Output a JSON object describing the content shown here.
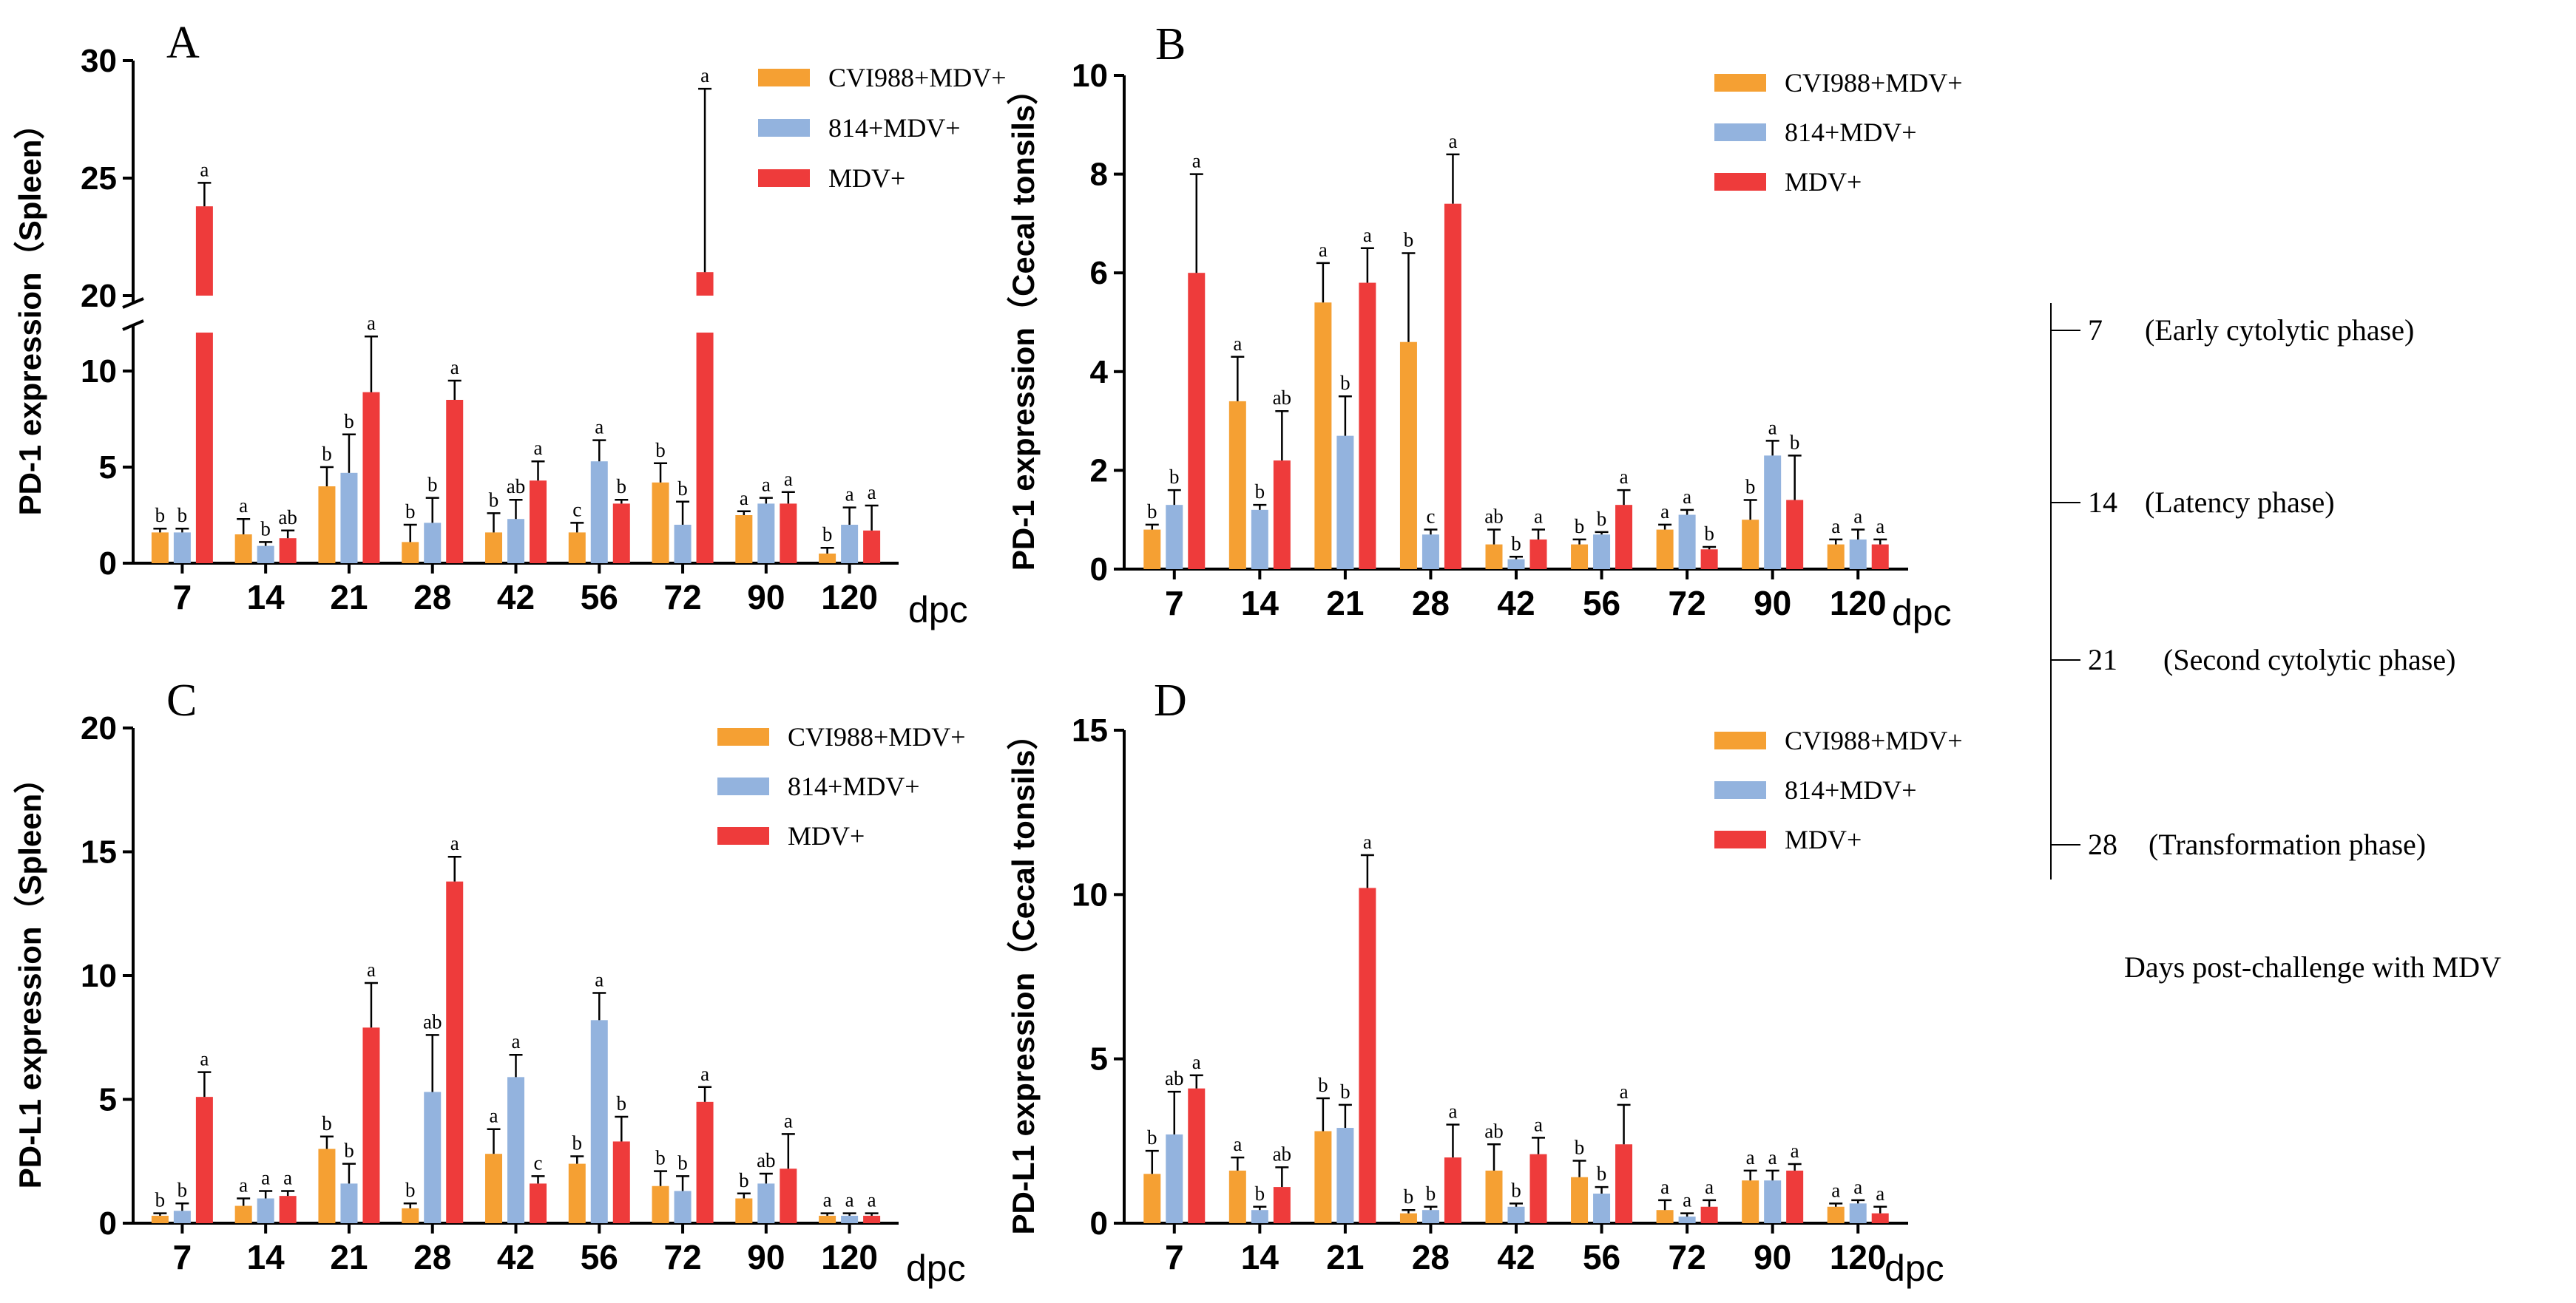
{
  "colors": {
    "CVI988+MDV+": "#F5A033",
    "814+MDV+": "#93B3DE",
    "MDV+": "#EE3B3B"
  },
  "x_axis_unit": "dpc",
  "chart_data": [
    {
      "type": "bar",
      "panel": "A",
      "ylabel": "PD-1 expression（Spleen）",
      "xlabel": "dpc",
      "categories": [
        "7",
        "14",
        "21",
        "28",
        "42",
        "56",
        "72",
        "90",
        "120"
      ],
      "ylim": [
        0,
        30
      ],
      "y_axis_break": [
        12,
        20
      ],
      "yticks": [
        0,
        5,
        10,
        20,
        25,
        30
      ],
      "series": [
        {
          "name": "CVI988+MDV+",
          "values": [
            1.6,
            1.5,
            4.0,
            1.1,
            1.6,
            1.6,
            4.2,
            2.5,
            0.5
          ],
          "errors": [
            0.2,
            0.8,
            1.0,
            0.9,
            1.0,
            0.5,
            1.0,
            0.2,
            0.3
          ],
          "labels": [
            "b",
            "a",
            "b",
            "b",
            "b",
            "c",
            "b",
            "a",
            "b"
          ]
        },
        {
          "name": "814+MDV+",
          "values": [
            1.6,
            0.9,
            4.7,
            2.1,
            2.3,
            5.3,
            2.0,
            3.1,
            2.0
          ],
          "errors": [
            0.2,
            0.2,
            2.0,
            1.3,
            1.0,
            1.1,
            1.2,
            0.3,
            0.9
          ],
          "labels": [
            "b",
            "b",
            "b",
            "b",
            "ab",
            "a",
            "b",
            "a",
            "a"
          ]
        },
        {
          "name": "MDV+",
          "values": [
            23.8,
            1.3,
            8.9,
            8.5,
            4.3,
            3.1,
            21.0,
            3.1,
            1.7
          ],
          "errors": [
            1.0,
            0.4,
            2.9,
            1.0,
            1.0,
            0.2,
            7.8,
            0.6,
            1.3
          ],
          "labels": [
            "a",
            "ab",
            "a",
            "a",
            "a",
            "b",
            "a",
            "a",
            "a"
          ]
        }
      ]
    },
    {
      "type": "bar",
      "panel": "B",
      "ylabel": "PD-1 expression（Cecal tonsils）",
      "xlabel": "dpc",
      "categories": [
        "7",
        "14",
        "21",
        "28",
        "42",
        "56",
        "72",
        "90",
        "120"
      ],
      "ylim": [
        0,
        10
      ],
      "yticks": [
        0,
        2,
        4,
        6,
        8,
        10
      ],
      "series": [
        {
          "name": "CVI988+MDV+",
          "values": [
            0.8,
            3.4,
            5.4,
            4.6,
            0.5,
            0.5,
            0.8,
            1.0,
            0.5
          ],
          "errors": [
            0.1,
            0.9,
            0.8,
            1.8,
            0.3,
            0.1,
            0.1,
            0.4,
            0.1
          ],
          "labels": [
            "b",
            "a",
            "a",
            "b",
            "ab",
            "b",
            "a",
            "b",
            "a"
          ]
        },
        {
          "name": "814+MDV+",
          "values": [
            1.3,
            1.2,
            2.7,
            0.7,
            0.2,
            0.7,
            1.1,
            2.3,
            0.6
          ],
          "errors": [
            0.3,
            0.1,
            0.8,
            0.1,
            0.05,
            0.05,
            0.1,
            0.3,
            0.2
          ],
          "labels": [
            "b",
            "b",
            "b",
            "c",
            "b",
            "b",
            "a",
            "a",
            "a"
          ]
        },
        {
          "name": "MDV+",
          "values": [
            6.0,
            2.2,
            5.8,
            7.4,
            0.6,
            1.3,
            0.4,
            1.4,
            0.5
          ],
          "errors": [
            2.0,
            1.0,
            0.7,
            1.0,
            0.2,
            0.3,
            0.05,
            0.9,
            0.1
          ],
          "labels": [
            "a",
            "ab",
            "a",
            "a",
            "a",
            "a",
            "b",
            "b",
            "a"
          ]
        }
      ]
    },
    {
      "type": "bar",
      "panel": "C",
      "ylabel": "PD-L1 expression（Spleen）",
      "xlabel": "dpc",
      "categories": [
        "7",
        "14",
        "21",
        "28",
        "42",
        "56",
        "72",
        "90",
        "120"
      ],
      "ylim": [
        0,
        20
      ],
      "yticks": [
        0,
        5,
        10,
        15,
        20
      ],
      "series": [
        {
          "name": "CVI988+MDV+",
          "values": [
            0.3,
            0.7,
            3.0,
            0.6,
            2.8,
            2.4,
            1.5,
            1.0,
            0.3
          ],
          "errors": [
            0.1,
            0.3,
            0.5,
            0.2,
            1.0,
            0.3,
            0.6,
            0.2,
            0.1
          ],
          "labels": [
            "b",
            "a",
            "b",
            "b",
            "a",
            "b",
            "b",
            "b",
            "a"
          ]
        },
        {
          "name": "814+MDV+",
          "values": [
            0.5,
            1.0,
            1.6,
            5.3,
            5.9,
            8.2,
            1.3,
            1.6,
            0.3
          ],
          "errors": [
            0.3,
            0.3,
            0.8,
            2.3,
            0.9,
            1.1,
            0.6,
            0.4,
            0.1
          ],
          "labels": [
            "b",
            "a",
            "b",
            "ab",
            "a",
            "a",
            "b",
            "ab",
            "a"
          ]
        },
        {
          "name": "MDV+",
          "values": [
            5.1,
            1.1,
            7.9,
            13.8,
            1.6,
            3.3,
            4.9,
            2.2,
            0.3
          ],
          "errors": [
            1.0,
            0.2,
            1.8,
            1.0,
            0.3,
            1.0,
            0.6,
            1.4,
            0.1
          ],
          "labels": [
            "a",
            "a",
            "a",
            "a",
            "c",
            "b",
            "a",
            "a",
            "a"
          ]
        }
      ]
    },
    {
      "type": "bar",
      "panel": "D",
      "ylabel": "PD-L1 expression（Cecal tonsils）",
      "xlabel": "dpc",
      "categories": [
        "7",
        "14",
        "21",
        "28",
        "42",
        "56",
        "72",
        "90",
        "120"
      ],
      "ylim": [
        0,
        15
      ],
      "yticks": [
        0,
        5,
        10,
        15
      ],
      "series": [
        {
          "name": "CVI988+MDV+",
          "values": [
            1.5,
            1.6,
            2.8,
            0.3,
            1.6,
            1.4,
            0.4,
            1.3,
            0.5
          ],
          "errors": [
            0.7,
            0.4,
            1.0,
            0.1,
            0.8,
            0.5,
            0.3,
            0.3,
            0.1
          ],
          "labels": [
            "b",
            "a",
            "b",
            "b",
            "ab",
            "b",
            "a",
            "a",
            "a"
          ]
        },
        {
          "name": "814+MDV+",
          "values": [
            2.7,
            0.4,
            2.9,
            0.4,
            0.5,
            0.9,
            0.2,
            1.3,
            0.6
          ],
          "errors": [
            1.3,
            0.1,
            0.7,
            0.1,
            0.1,
            0.2,
            0.1,
            0.3,
            0.1
          ],
          "labels": [
            "ab",
            "b",
            "b",
            "b",
            "b",
            "b",
            "a",
            "a",
            "a"
          ]
        },
        {
          "name": "MDV+",
          "values": [
            4.1,
            1.1,
            10.2,
            2.0,
            2.1,
            2.4,
            0.5,
            1.6,
            0.3
          ],
          "errors": [
            0.4,
            0.6,
            1.0,
            1.0,
            0.5,
            1.2,
            0.2,
            0.2,
            0.2
          ],
          "labels": [
            "a",
            "ab",
            "a",
            "a",
            "a",
            "a",
            "a",
            "a",
            "a"
          ]
        }
      ]
    }
  ],
  "side_legend": {
    "items": [
      {
        "day": "7",
        "phase": "(Early cytolytic phase)"
      },
      {
        "day": "14",
        "phase": "(Latency phase)"
      },
      {
        "day": "21",
        "phase": "(Second cytolytic phase)"
      },
      {
        "day": "28",
        "phase": "(Transformation phase)"
      }
    ],
    "caption": "Days post-challenge with MDV"
  }
}
